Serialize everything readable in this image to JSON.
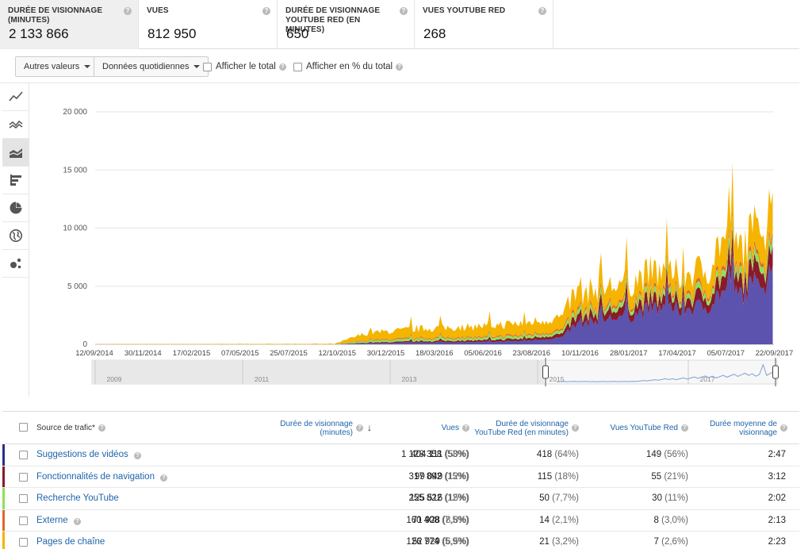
{
  "metrics": [
    {
      "label": "DURÉE DE VISIONNAGE (MINUTES)",
      "value": "2 133 866",
      "active": true
    },
    {
      "label": "VUES",
      "value": "812 950",
      "active": false
    },
    {
      "label": "DURÉE DE VISIONNAGE YOUTUBE RED (EN MINUTES)",
      "value": "650",
      "active": false
    },
    {
      "label": "VUES YOUTUBE RED",
      "value": "268",
      "active": false
    }
  ],
  "help_glyph": "?",
  "toolbar": {
    "other_values": "Autres valeurs",
    "granularity": "Données quotidiennes",
    "show_total": "Afficher le total",
    "show_percent": "Afficher en % du total"
  },
  "rail": [
    "line-chart-icon",
    "multi-line-chart-icon",
    "stacked-area-chart-icon",
    "bar-chart-icon",
    "pie-chart-icon",
    "globe-map-icon",
    "bubble-chart-icon"
  ],
  "chart_data": {
    "type": "area",
    "stacked": true,
    "title": "",
    "xlabel": "",
    "ylabel": "",
    "ylim": [
      0,
      20000
    ],
    "y_ticks": [
      "0",
      "5 000",
      "10 000",
      "15 000",
      "20 000"
    ],
    "y_tick_values": [
      0,
      5000,
      10000,
      15000,
      20000
    ],
    "x_ticks": [
      "12/09/2014",
      "30/11/2014",
      "17/02/2015",
      "07/05/2015",
      "25/07/2015",
      "12/10/2015",
      "30/12/2015",
      "18/03/2016",
      "05/06/2016",
      "23/08/2016",
      "10/11/2016",
      "28/01/2017",
      "17/04/2017",
      "05/07/2017",
      "22/09/2017"
    ],
    "x_start": "2014-09-12",
    "x_end": "2017-10-01",
    "grid": true,
    "series": [
      {
        "name": "Suggestions de vidéos",
        "color": "#5b53ad",
        "points": [
          [
            "2014-09-12",
            0
          ],
          [
            "2015-10-10",
            0
          ],
          [
            "2015-12-01",
            80
          ],
          [
            "2016-03-01",
            150
          ],
          [
            "2016-06-01",
            200
          ],
          [
            "2016-08-15",
            280
          ],
          [
            "2016-10-20",
            600
          ],
          [
            "2016-11-05",
            1500
          ],
          [
            "2016-11-20",
            1800
          ],
          [
            "2017-01-05",
            2200
          ],
          [
            "2017-02-10",
            2500
          ],
          [
            "2017-03-15",
            3100
          ],
          [
            "2017-05-01",
            3000
          ],
          [
            "2017-06-15",
            3300
          ],
          [
            "2017-07-05",
            4500
          ],
          [
            "2017-08-01",
            4200
          ],
          [
            "2017-09-01",
            5000
          ],
          [
            "2017-09-20",
            5600
          ],
          [
            "2017-09-28",
            6500
          ],
          [
            "2017-10-01",
            6000
          ]
        ]
      },
      {
        "name": "Fonctionnalités de navigation",
        "color": "#8a1a2a",
        "points": [
          [
            "2014-09-12",
            0
          ],
          [
            "2015-10-10",
            0
          ],
          [
            "2015-12-01",
            60
          ],
          [
            "2016-03-01",
            120
          ],
          [
            "2016-06-01",
            150
          ],
          [
            "2016-08-15",
            200
          ],
          [
            "2016-10-20",
            300
          ],
          [
            "2016-11-05",
            600
          ],
          [
            "2016-11-20",
            600
          ],
          [
            "2017-01-05",
            700
          ],
          [
            "2017-02-10",
            750
          ],
          [
            "2017-03-15",
            800
          ],
          [
            "2017-05-01",
            800
          ],
          [
            "2017-06-15",
            900
          ],
          [
            "2017-07-05",
            1200
          ],
          [
            "2017-08-01",
            1100
          ],
          [
            "2017-09-01",
            1300
          ],
          [
            "2017-09-20",
            1400
          ],
          [
            "2017-09-28",
            1700
          ],
          [
            "2017-10-01",
            1500
          ]
        ]
      },
      {
        "name": "Recherche YouTube",
        "color": "#8fe05a",
        "points": [
          [
            "2014-09-12",
            0
          ],
          [
            "2015-10-10",
            0
          ],
          [
            "2015-12-01",
            150
          ],
          [
            "2016-03-01",
            200
          ],
          [
            "2016-06-01",
            200
          ],
          [
            "2016-08-15",
            230
          ],
          [
            "2016-10-20",
            250
          ],
          [
            "2016-11-05",
            350
          ],
          [
            "2016-11-20",
            350
          ],
          [
            "2017-01-05",
            380
          ],
          [
            "2017-02-10",
            400
          ],
          [
            "2017-03-15",
            420
          ],
          [
            "2017-05-01",
            420
          ],
          [
            "2017-06-15",
            450
          ],
          [
            "2017-07-05",
            550
          ],
          [
            "2017-08-01",
            520
          ],
          [
            "2017-09-01",
            600
          ],
          [
            "2017-09-20",
            650
          ],
          [
            "2017-09-28",
            700
          ],
          [
            "2017-10-01",
            650
          ]
        ]
      },
      {
        "name": "Externe",
        "color": "#e0662e",
        "points": [
          [
            "2014-09-12",
            0
          ],
          [
            "2015-10-10",
            0
          ],
          [
            "2015-12-01",
            60
          ],
          [
            "2016-03-01",
            80
          ],
          [
            "2016-06-01",
            90
          ],
          [
            "2016-08-15",
            100
          ],
          [
            "2016-10-20",
            120
          ],
          [
            "2016-11-05",
            200
          ],
          [
            "2016-11-20",
            200
          ],
          [
            "2017-01-05",
            220
          ],
          [
            "2017-02-10",
            230
          ],
          [
            "2017-03-15",
            250
          ],
          [
            "2017-05-01",
            250
          ],
          [
            "2017-06-15",
            260
          ],
          [
            "2017-07-05",
            300
          ],
          [
            "2017-08-01",
            290
          ],
          [
            "2017-09-01",
            330
          ],
          [
            "2017-09-20",
            350
          ],
          [
            "2017-09-28",
            400
          ],
          [
            "2017-10-01",
            370
          ]
        ]
      },
      {
        "name": "Pages de chaîne",
        "color": "#f5b400",
        "points": [
          [
            "2014-09-12",
            20
          ],
          [
            "2015-10-10",
            40
          ],
          [
            "2015-12-01",
            600
          ],
          [
            "2016-03-01",
            800
          ],
          [
            "2016-06-01",
            900
          ],
          [
            "2016-08-15",
            1000
          ],
          [
            "2016-10-20",
            1100
          ],
          [
            "2016-11-05",
            1600
          ],
          [
            "2016-11-20",
            1500
          ],
          [
            "2017-01-05",
            1500
          ],
          [
            "2017-02-10",
            1500
          ],
          [
            "2017-03-15",
            1700
          ],
          [
            "2017-05-01",
            1500
          ],
          [
            "2017-06-15",
            1600
          ],
          [
            "2017-07-05",
            2500
          ],
          [
            "2017-08-01",
            2000
          ],
          [
            "2017-09-01",
            2400
          ],
          [
            "2017-09-20",
            2700
          ],
          [
            "2017-09-28",
            3600
          ],
          [
            "2017-10-01",
            2500
          ]
        ]
      }
    ],
    "navigator": {
      "labels": [
        "2009",
        "2011",
        "2013",
        "2015",
        "2017"
      ],
      "selection_start": "2014-09-12",
      "selection_end": "2017-10-01"
    }
  },
  "table": {
    "headers": {
      "source": "Source de trafic*",
      "watch": "Durée de visionnage (minutes)",
      "views": "Vues",
      "red_watch": "Durée de visionnage YouTube Red (en minutes)",
      "red_views": "Vues YouTube Red",
      "avg": "Durée moyenne de visionnage",
      "sort_icon": "↓"
    },
    "rows": [
      {
        "name": "Suggestions de vidéos",
        "color": "#2a2f8f",
        "help": true,
        "watch": "1 128 358",
        "watch_pct": "(53%)",
        "views": "404 111",
        "views_pct": "(50%)",
        "red_watch": "418",
        "red_watch_pct": "(64%)",
        "red_views": "149",
        "red_views_pct": "(56%)",
        "avg": "2:47"
      },
      {
        "name": "Fonctionnalités de navigation",
        "color": "#8a1a2a",
        "help": true,
        "watch": "317 892",
        "watch_pct": "(15%)",
        "views": "99 049",
        "views_pct": "(12%)",
        "red_watch": "115",
        "red_watch_pct": "(18%)",
        "red_views": "55",
        "red_views_pct": "(21%)",
        "avg": "3:12"
      },
      {
        "name": "Recherche YouTube",
        "color": "#8fe05a",
        "help": false,
        "watch": "255 822",
        "watch_pct": "(12%)",
        "views": "125 516",
        "views_pct": "(15%)",
        "red_watch": "50",
        "red_watch_pct": "(7,7%)",
        "red_views": "30",
        "red_views_pct": "(11%)",
        "avg": "2:02"
      },
      {
        "name": "Externe",
        "color": "#e0662e",
        "help": true,
        "watch": "160 408",
        "watch_pct": "(7,5%)",
        "views": "71 928",
        "views_pct": "(8,8%)",
        "red_watch": "14",
        "red_watch_pct": "(2,1%)",
        "red_views": "8",
        "red_views_pct": "(3,0%)",
        "avg": "2:13"
      },
      {
        "name": "Pages de chaîne",
        "color": "#f5b400",
        "help": false,
        "watch": "126 774",
        "watch_pct": "(5,9%)",
        "views": "52 929",
        "views_pct": "(6,5%)",
        "red_watch": "21",
        "red_watch_pct": "(3,2%)",
        "red_views": "7",
        "red_views_pct": "(2,6%)",
        "avg": "2:23"
      }
    ]
  }
}
